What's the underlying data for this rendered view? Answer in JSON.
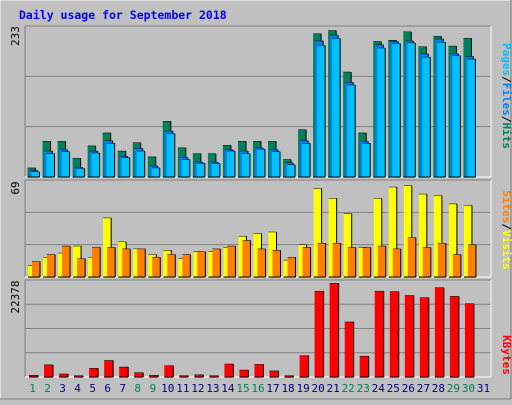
{
  "chart_data": [
    {
      "type": "bar",
      "title": "Daily usage for September 2018",
      "panel": "requests",
      "ylabel_parts": [
        "Pages",
        "Files",
        "Hits"
      ],
      "ytick_top": "233",
      "ylim": [
        0,
        233
      ],
      "grid": true,
      "categories": [
        "1",
        "2",
        "3",
        "4",
        "5",
        "6",
        "7",
        "8",
        "9",
        "10",
        "11",
        "12",
        "13",
        "14",
        "15",
        "16",
        "17",
        "18",
        "19",
        "20",
        "21",
        "22",
        "23",
        "24",
        "25",
        "26",
        "27",
        "28",
        "29",
        "30",
        "31"
      ],
      "weekend_days": [
        "1",
        "2",
        "8",
        "9",
        "15",
        "16",
        "22",
        "23",
        "29",
        "30"
      ],
      "series": [
        {
          "name": "Hits",
          "values": [
            14,
            55,
            55,
            29,
            48,
            68,
            40,
            53,
            31,
            86,
            45,
            36,
            36,
            49,
            55,
            55,
            55,
            27,
            73,
            221,
            226,
            162,
            68,
            209,
            211,
            224,
            201,
            217,
            202,
            214,
            0
          ]
        },
        {
          "name": "Files",
          "values": [
            10,
            40,
            42,
            15,
            40,
            56,
            32,
            44,
            17,
            71,
            30,
            23,
            23,
            42,
            40,
            45,
            42,
            22,
            56,
            210,
            219,
            146,
            55,
            204,
            209,
            210,
            190,
            213,
            190,
            186,
            0
          ]
        },
        {
          "name": "Pages",
          "values": [
            8,
            36,
            39,
            13,
            37,
            52,
            30,
            40,
            14,
            67,
            27,
            21,
            21,
            40,
            36,
            43,
            39,
            19,
            52,
            203,
            214,
            142,
            52,
            199,
            206,
            207,
            185,
            208,
            187,
            182,
            0
          ]
        }
      ]
    },
    {
      "type": "bar",
      "panel": "sites-visits",
      "ylabel_parts": [
        "Sites",
        "Visits"
      ],
      "ytick_top": "69",
      "ylim": [
        0,
        69
      ],
      "grid": true,
      "series": [
        {
          "name": "Visits",
          "values": [
            8,
            14,
            17,
            22,
            14,
            42,
            25,
            20,
            16,
            19,
            13,
            18,
            18,
            21,
            29,
            31,
            32,
            12,
            23,
            63,
            56,
            45,
            21,
            56,
            64,
            65,
            59,
            58,
            52,
            51,
            0
          ]
        },
        {
          "name": "Sites",
          "values": [
            11,
            16,
            22,
            13,
            21,
            21,
            20,
            20,
            14,
            16,
            16,
            18,
            20,
            22,
            26,
            20,
            19,
            14,
            21,
            24,
            24,
            21,
            21,
            22,
            20,
            28,
            21,
            24,
            16,
            23,
            0
          ]
        }
      ]
    },
    {
      "type": "bar",
      "panel": "kbytes",
      "ylabel_parts": [
        "KBytes"
      ],
      "ytick_top": "22378",
      "ylim": [
        0,
        22378
      ],
      "grid": true,
      "series": [
        {
          "name": "KBytes",
          "values": [
            400,
            2800,
            700,
            300,
            2000,
            3800,
            2300,
            1000,
            400,
            2600,
            300,
            500,
            300,
            3000,
            1600,
            2900,
            1400,
            300,
            4900,
            19800,
            21600,
            12700,
            4800,
            19800,
            19700,
            18800,
            18300,
            20600,
            18600,
            16900,
            0
          ]
        }
      ]
    }
  ],
  "colors": {
    "hits": "#00805C",
    "files": "#0080FF",
    "pages": "#00C0FF",
    "visits": "#FFFF00",
    "sites": "#FF8000",
    "kbytes": "#FF0000",
    "title": "#0000FF",
    "weekend_label": "#00805C",
    "weekday_label": "#000080"
  }
}
